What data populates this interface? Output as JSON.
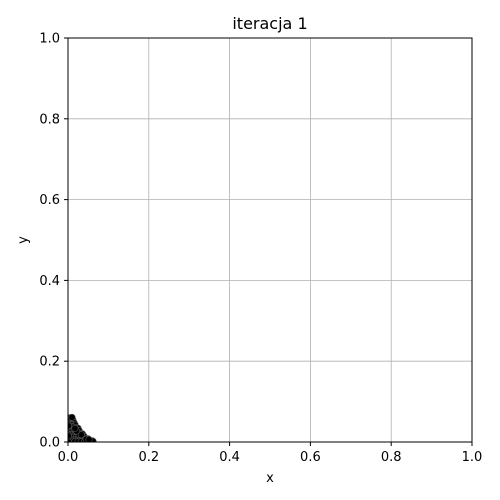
{
  "chart_data": {
    "type": "scatter",
    "title": "iteracja 1",
    "xlabel": "x",
    "ylabel": "y",
    "xlim": [
      0,
      1
    ],
    "ylim": [
      0,
      1
    ],
    "xticks": [
      "0.0",
      "0.2",
      "0.4",
      "0.6",
      "0.8",
      "1.0"
    ],
    "yticks": [
      "0.0",
      "0.2",
      "0.4",
      "0.6",
      "0.8",
      "1.0"
    ],
    "grid": true,
    "marker_color": "#000000",
    "points": [
      [
        0.003,
        0.056
      ],
      [
        0.008,
        0.058
      ],
      [
        0.012,
        0.055
      ],
      [
        0.005,
        0.05
      ],
      [
        0.01,
        0.05
      ],
      [
        0.015,
        0.048
      ],
      [
        0.002,
        0.045
      ],
      [
        0.007,
        0.044
      ],
      [
        0.012,
        0.043
      ],
      [
        0.018,
        0.042
      ],
      [
        0.004,
        0.038
      ],
      [
        0.009,
        0.038
      ],
      [
        0.014,
        0.037
      ],
      [
        0.02,
        0.036
      ],
      [
        0.025,
        0.034
      ],
      [
        0.002,
        0.032
      ],
      [
        0.006,
        0.031
      ],
      [
        0.011,
        0.031
      ],
      [
        0.016,
        0.03
      ],
      [
        0.022,
        0.03
      ],
      [
        0.028,
        0.028
      ],
      [
        0.004,
        0.025
      ],
      [
        0.009,
        0.025
      ],
      [
        0.014,
        0.024
      ],
      [
        0.019,
        0.024
      ],
      [
        0.025,
        0.023
      ],
      [
        0.031,
        0.022
      ],
      [
        0.036,
        0.02
      ],
      [
        0.002,
        0.019
      ],
      [
        0.007,
        0.018
      ],
      [
        0.012,
        0.018
      ],
      [
        0.017,
        0.018
      ],
      [
        0.023,
        0.017
      ],
      [
        0.029,
        0.016
      ],
      [
        0.035,
        0.015
      ],
      [
        0.04,
        0.014
      ],
      [
        0.004,
        0.012
      ],
      [
        0.009,
        0.012
      ],
      [
        0.014,
        0.012
      ],
      [
        0.02,
        0.011
      ],
      [
        0.026,
        0.011
      ],
      [
        0.032,
        0.01
      ],
      [
        0.038,
        0.01
      ],
      [
        0.044,
        0.009
      ],
      [
        0.05,
        0.008
      ],
      [
        0.002,
        0.006
      ],
      [
        0.007,
        0.006
      ],
      [
        0.012,
        0.006
      ],
      [
        0.018,
        0.005
      ],
      [
        0.024,
        0.005
      ],
      [
        0.03,
        0.005
      ],
      [
        0.036,
        0.004
      ],
      [
        0.042,
        0.004
      ],
      [
        0.048,
        0.004
      ],
      [
        0.054,
        0.003
      ],
      [
        0.06,
        0.003
      ],
      [
        0.003,
        0.002
      ],
      [
        0.01,
        0.002
      ],
      [
        0.017,
        0.001
      ],
      [
        0.025,
        0.001
      ],
      [
        0.033,
        0.001
      ],
      [
        0.041,
        0.001
      ],
      [
        0.049,
        0.001
      ],
      [
        0.057,
        0.001
      ],
      [
        0.062,
        0.002
      ],
      [
        0.001,
        0.001
      ],
      [
        0.045,
        0.007
      ],
      [
        0.052,
        0.006
      ],
      [
        0.027,
        0.019
      ],
      [
        0.033,
        0.018
      ],
      [
        0.021,
        0.027
      ],
      [
        0.017,
        0.034
      ],
      [
        0.005,
        0.06
      ],
      [
        0.01,
        0.061
      ],
      [
        0.001,
        0.04
      ],
      [
        0.001,
        0.015
      ]
    ]
  }
}
